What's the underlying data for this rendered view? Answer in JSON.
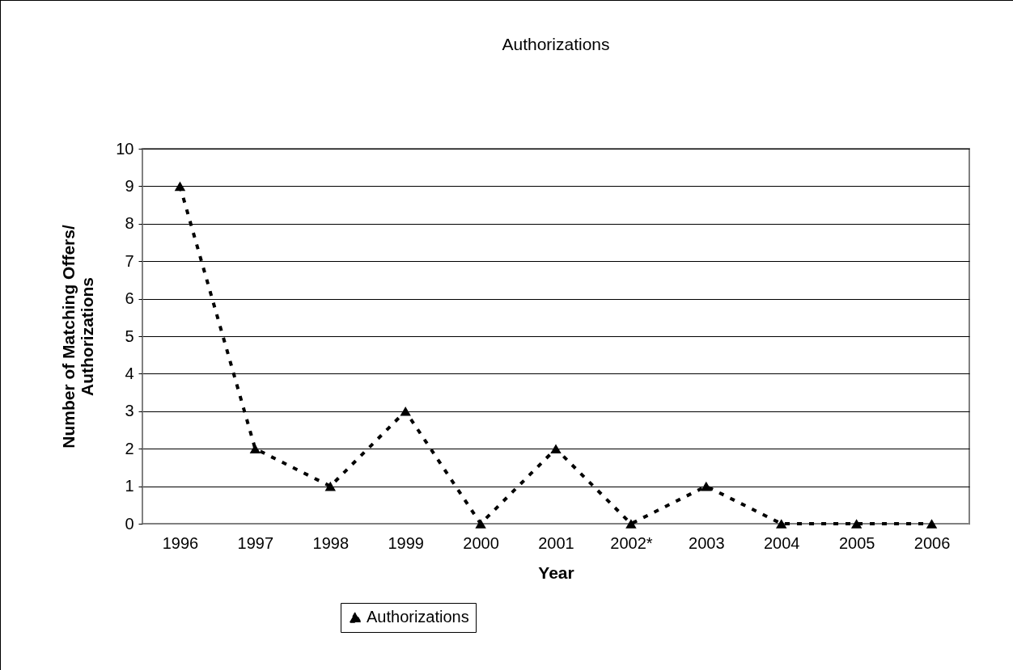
{
  "chart_data": {
    "type": "line",
    "title": "Authorizations",
    "xlabel": "Year",
    "ylabel": "Number of Matching Offers/\nAuthorizations",
    "categories": [
      "1996",
      "1997",
      "1998",
      "1999",
      "2000",
      "2001",
      "2002*",
      "2003",
      "2004",
      "2005",
      "2006"
    ],
    "series": [
      {
        "name": "Authorizations",
        "color": "#000000",
        "values": [
          9,
          2,
          1,
          3,
          0,
          2,
          0,
          1,
          0,
          0,
          0
        ]
      }
    ],
    "ylim": [
      0,
      10
    ],
    "yticks": [
      0,
      1,
      2,
      3,
      4,
      5,
      6,
      7,
      8,
      9,
      10
    ],
    "grid": "y",
    "legend": "bottom",
    "marker": "triangle",
    "line_style": "dashed"
  }
}
